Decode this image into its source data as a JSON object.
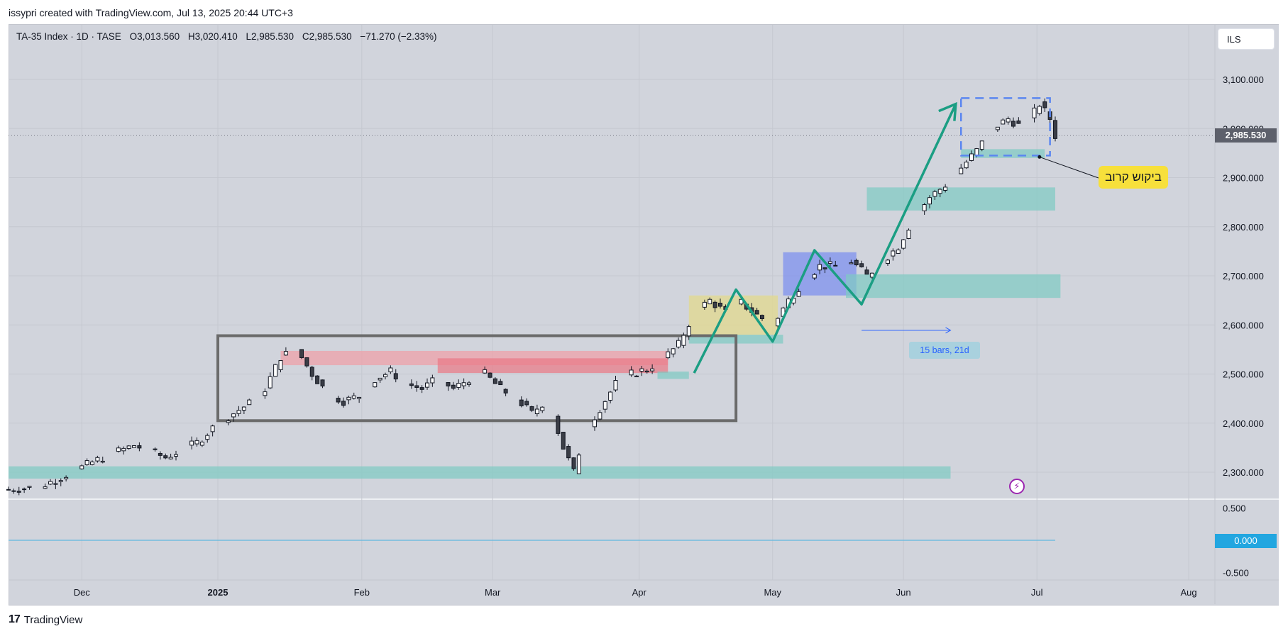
{
  "caption": "issypri created with TradingView.com, Jul 13, 2025 20:44 UTC+3",
  "legend": {
    "symbol": "TA-35 Index · 1D · TASE",
    "open": "O3,013.560",
    "high": "H3,020.410",
    "low": "L2,985.530",
    "close": "C2,985.530",
    "change": "−71.270 (−2.33%)"
  },
  "currency_button": "ILS",
  "footer_brand": "TradingView",
  "footer_logo_glyph": "17",
  "last_price_label": "2,985.530",
  "osc_zero_label": "0.000",
  "callout_text": "ביקוש קרוב",
  "range_label": "15 bars, 21d",
  "chart_data": {
    "type": "candlestick",
    "symbol": "TA-35 Index",
    "interval": "1D",
    "exchange": "TASE",
    "currency": "ILS",
    "x_labels": [
      "Dec",
      "2025",
      "Feb",
      "Mar",
      "Apr",
      "May",
      "Jun",
      "Jul",
      "Aug"
    ],
    "y_ticks": [
      "3,100.000",
      "3,000.000",
      "2,900.000",
      "2,800.000",
      "2,700.000",
      "2,600.000",
      "2,500.000",
      "2,400.000",
      "2,300.000"
    ],
    "y_tick_values": [
      3100,
      3000,
      2900,
      2800,
      2700,
      2600,
      2500,
      2400,
      2300
    ],
    "oscillator_ticks": [
      "0.500",
      "-0.500"
    ],
    "oscillator_values": [
      0.5,
      -0.5
    ],
    "last_close": 2985.53,
    "price_path": [
      [
        0,
        2265
      ],
      [
        6,
        2270
      ],
      [
        12,
        2300
      ],
      [
        18,
        2330
      ],
      [
        24,
        2355
      ],
      [
        30,
        2330
      ],
      [
        36,
        2360
      ],
      [
        40,
        2400
      ],
      [
        43,
        2420
      ],
      [
        46,
        2440
      ],
      [
        49,
        2470
      ],
      [
        52,
        2535
      ],
      [
        55,
        2550
      ],
      [
        58,
        2500
      ],
      [
        61,
        2460
      ],
      [
        64,
        2445
      ],
      [
        67,
        2455
      ],
      [
        70,
        2490
      ],
      [
        73,
        2505
      ],
      [
        76,
        2480
      ],
      [
        79,
        2470
      ],
      [
        82,
        2490
      ],
      [
        85,
        2470
      ],
      [
        88,
        2490
      ],
      [
        91,
        2500
      ],
      [
        94,
        2470
      ],
      [
        97,
        2450
      ],
      [
        100,
        2420
      ],
      [
        103,
        2450
      ],
      [
        106,
        2350
      ],
      [
        108,
        2300
      ],
      [
        110,
        2380
      ],
      [
        113,
        2430
      ],
      [
        116,
        2480
      ],
      [
        119,
        2500
      ],
      [
        122,
        2510
      ],
      [
        125,
        2530
      ],
      [
        128,
        2560
      ],
      [
        131,
        2625
      ],
      [
        134,
        2650
      ],
      [
        137,
        2625
      ],
      [
        140,
        2645
      ],
      [
        143,
        2620
      ],
      [
        146,
        2600
      ],
      [
        149,
        2650
      ],
      [
        152,
        2690
      ],
      [
        155,
        2720
      ],
      [
        158,
        2720
      ],
      [
        161,
        2730
      ],
      [
        164,
        2700
      ],
      [
        167,
        2730
      ],
      [
        170,
        2760
      ],
      [
        173,
        2820
      ],
      [
        176,
        2860
      ],
      [
        179,
        2885
      ],
      [
        182,
        2920
      ],
      [
        185,
        2955
      ],
      [
        188,
        3000
      ],
      [
        191,
        3020
      ],
      [
        194,
        3000
      ],
      [
        197,
        3050
      ],
      [
        199,
        3020
      ],
      [
        200,
        2985.53
      ]
    ],
    "zones": [
      {
        "name": "demand-zone",
        "color": "#80cbc4",
        "from_x": 0,
        "to_x": 180,
        "y_low": 2287,
        "y_high": 2312
      },
      {
        "name": "supply-zone",
        "color": "#f0a0a8",
        "from_x": 52,
        "to_x": 126,
        "y_low": 2518,
        "y_high": 2547
      },
      {
        "name": "supply-zone",
        "color": "#ea7a86",
        "from_x": 82,
        "to_x": 126,
        "y_low": 2502,
        "y_high": 2532
      },
      {
        "name": "demand-zone",
        "color": "#80cbc4",
        "from_x": 124,
        "to_x": 130,
        "y_low": 2490,
        "y_high": 2505
      },
      {
        "name": "consolidation-zone",
        "color": "#e3d98a",
        "from_x": 130,
        "to_x": 147,
        "y_low": 2580,
        "y_high": 2660
      },
      {
        "name": "demand-zone",
        "color": "#80cbc4",
        "from_x": 130,
        "to_x": 148,
        "y_low": 2562,
        "y_high": 2580
      },
      {
        "name": "consolidation-zone",
        "color": "#7b8ff0",
        "from_x": 148,
        "to_x": 162,
        "y_low": 2660,
        "y_high": 2748
      },
      {
        "name": "demand-zone",
        "color": "#80cbc4",
        "from_x": 160,
        "to_x": 201,
        "y_low": 2655,
        "y_high": 2703
      },
      {
        "name": "demand-zone",
        "color": "#80cbc4",
        "from_x": 164,
        "to_x": 200,
        "y_low": 2833,
        "y_high": 2880
      },
      {
        "name": "demand-zone",
        "color": "#80cbc4",
        "from_x": 182,
        "to_x": 198,
        "y_low": 2940,
        "y_high": 2958
      }
    ],
    "range_box": {
      "from_x": 40,
      "to_x": 139,
      "y_low": 2405,
      "y_high": 2578
    },
    "projection_box": {
      "from_x": 182,
      "to_x": 199,
      "y_low": 2945,
      "y_high": 3062
    },
    "zigzag": [
      [
        131,
        2502
      ],
      [
        139,
        2672
      ],
      [
        146,
        2566
      ],
      [
        154,
        2752
      ],
      [
        163,
        2642
      ],
      [
        181,
        3050
      ]
    ],
    "date_range_arrow": {
      "from_x": 163,
      "to_x": 180,
      "y": 2589
    }
  }
}
